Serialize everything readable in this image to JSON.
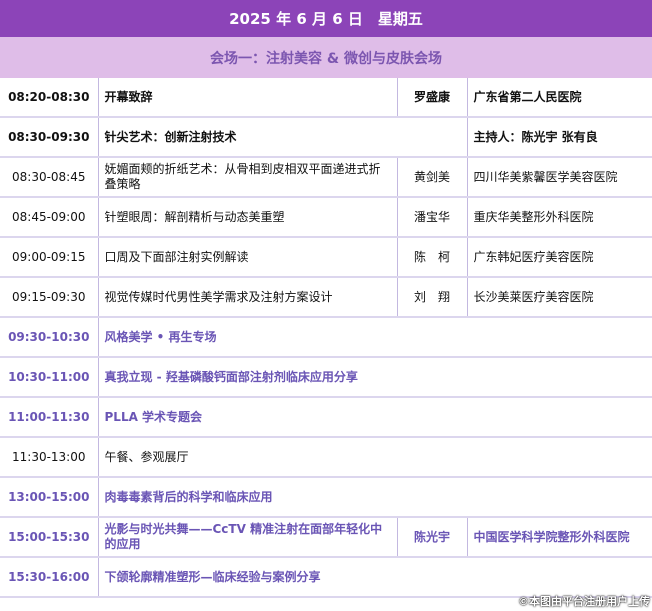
{
  "header": {
    "date": "2025 年 6 月 6 日　星期五",
    "venue": "会场一：注射美容 & 微创与皮肤会场"
  },
  "colors": {
    "header_bg": "#8c44b8",
    "venue_bg": "#dfbde8",
    "session_text": "#6a55b5"
  },
  "rows": [
    {
      "time": "08:20-08:30",
      "topic": "开幕致辞",
      "speaker": "罗盛康",
      "hospital": "广东省第二人民医院",
      "style": "bold"
    },
    {
      "time": "08:30-09:30",
      "topic": "针尖艺术：创新注射技术",
      "hospital": "主持人：陈光宇 张有良",
      "style": "bold",
      "span": 2
    },
    {
      "time": "08:30-08:45",
      "topic": "妩媚面颊的折纸艺术：从骨相到皮相双平面递进式折叠策略",
      "speaker": "黄剑美",
      "hospital": "四川华美紫馨医学美容医院",
      "style": "normal"
    },
    {
      "time": "08:45-09:00",
      "topic": "针塑眼周：解剖精析与动态美重塑",
      "speaker": "潘宝华",
      "hospital": "重庆华美整形外科医院",
      "style": "normal"
    },
    {
      "time": "09:00-09:15",
      "topic": "口周及下面部注射实例解读",
      "speaker": "陈　柯",
      "hospital": "广东韩妃医疗美容医院",
      "style": "normal"
    },
    {
      "time": "09:15-09:30",
      "topic": "视觉传媒时代男性美学需求及注射方案设计",
      "speaker": "刘　翔",
      "hospital": "长沙美莱医疗美容医院",
      "style": "normal"
    },
    {
      "time": "09:30-10:30",
      "topic": "风格美学 • 再生专场",
      "style": "purple",
      "span": 3
    },
    {
      "time": "10:30-11:00",
      "topic": "真我立现 - 羟基磷酸钙面部注射剂临床应用分享",
      "style": "purple",
      "span": 3
    },
    {
      "time": "11:00-11:30",
      "topic": "PLLA 学术专题会",
      "style": "purple",
      "span": 3
    },
    {
      "time": "11:30-13:00",
      "topic": "午餐、参观展厅",
      "style": "normal",
      "span": 3
    },
    {
      "time": "13:00-15:00",
      "topic": "肉毒毒素背后的科学和临床应用",
      "style": "purple",
      "span": 3
    },
    {
      "time": "15:00-15:30",
      "topic": "光影与时光共舞——CcTV 精准注射在面部年轻化中的应用",
      "speaker": "陈光宇",
      "hospital": "中国医学科学院整形外科医院",
      "style": "purple"
    },
    {
      "time": "15:30-16:00",
      "topic": "下颌轮廓精准塑形—临床经验与案例分享",
      "style": "purple",
      "span": 3
    }
  ],
  "watermark": "©本图由平台注册用户上传"
}
